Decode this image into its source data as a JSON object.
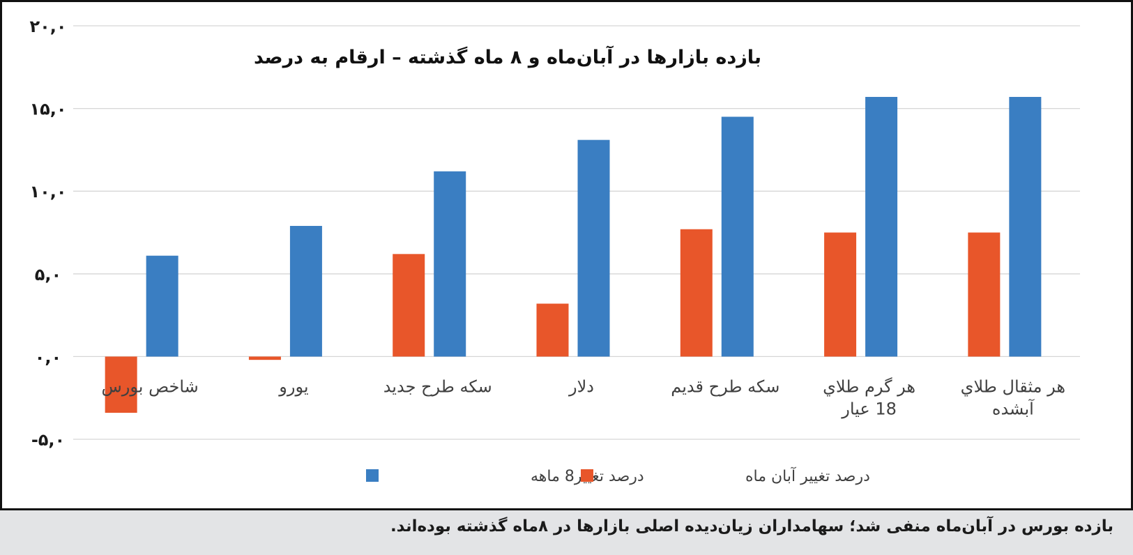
{
  "chart_data": {
    "type": "bar",
    "title": "بازده بازارها در آبان‌ماه و ۸ ماه گذشته – ارقام به درصد",
    "categories": [
      [
        "شاخص بورس"
      ],
      [
        "یورو"
      ],
      [
        "سکه طرح جدید"
      ],
      [
        "دلار"
      ],
      [
        "سکه طرح قدیم"
      ],
      [
        "هر گرم طلاي",
        "18 عيار"
      ],
      [
        "هر مثقال طلاي",
        "آبشده"
      ]
    ],
    "series": [
      {
        "name": "درصد تغییر آبان ماه",
        "color": "#e8562a",
        "values": [
          -3.4,
          -0.2,
          6.2,
          3.2,
          7.7,
          7.5,
          7.5
        ]
      },
      {
        "name": "درصد تغییر8 ماهه",
        "color": "#3a7ec2",
        "values": [
          6.1,
          7.9,
          11.2,
          13.1,
          14.5,
          15.7,
          15.7
        ]
      }
    ],
    "yticks": [
      {
        "value": -5,
        "label": "-۵,۰"
      },
      {
        "value": 0,
        "label": "۰,۰"
      },
      {
        "value": 5,
        "label": "۵,۰"
      },
      {
        "value": 10,
        "label": "۱۰,۰"
      },
      {
        "value": 15,
        "label": "۱۵,۰"
      },
      {
        "value": 20,
        "label": "۲۰,۰"
      }
    ],
    "ylim": [
      -5,
      20
    ],
    "grid": true,
    "legend_position": "bottom"
  },
  "caption": "بازده بورس در آبان‌ماه منفی شد؛ سهامداران زیان‌دیده اصلی بازارها در ۸ماه گذشته بوده‌اند."
}
